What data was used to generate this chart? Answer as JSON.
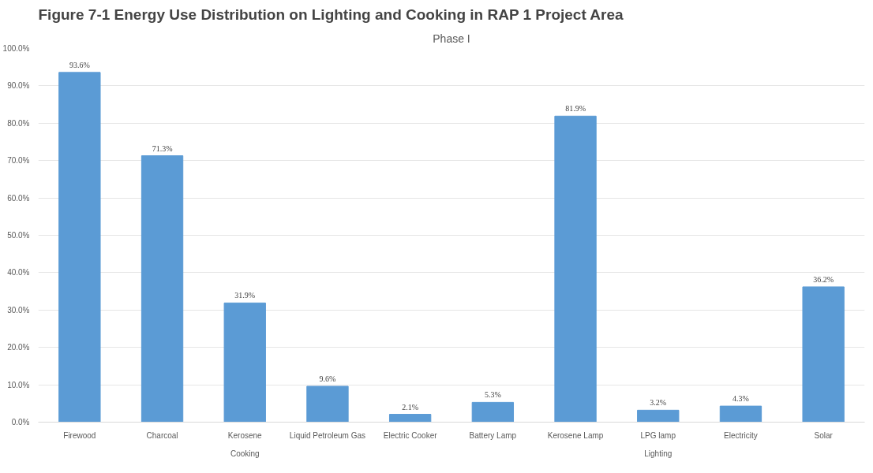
{
  "chart_data": {
    "type": "bar",
    "title": "Figure 7-1        Energy Use Distribution on Lighting and Cooking in RAP 1 Project Area",
    "subtitle": "Phase I",
    "categories": [
      "Firewood",
      "Charcoal",
      "Kerosene",
      "Liquid Petroleum Gas",
      "Electric Cooker",
      "Battery Lamp",
      "Kerosene Lamp",
      "LPG lamp",
      "Electricity",
      "Solar"
    ],
    "values": [
      93.6,
      71.3,
      31.9,
      9.6,
      2.1,
      5.3,
      81.9,
      3.2,
      4.3,
      36.2
    ],
    "color": "#5b9bd5",
    "value_labels": [
      "93.6%",
      "71.3%",
      "31.9%",
      "9.6%",
      "2.1%",
      "5.3%",
      "81.9%",
      "3.2%",
      "4.3%",
      "36.2%"
    ],
    "ylim": [
      0,
      100
    ],
    "yticks": [
      {
        "value": 0,
        "label": "0.0%"
      },
      {
        "value": 10,
        "label": "10.0%"
      },
      {
        "value": 20,
        "label": "20.0%"
      },
      {
        "value": 30,
        "label": "30.0%"
      },
      {
        "value": 40,
        "label": "40.0%"
      },
      {
        "value": 50,
        "label": "50.0%"
      },
      {
        "value": 60,
        "label": "60.0%"
      },
      {
        "value": 70,
        "label": "70.0%"
      },
      {
        "value": 80,
        "label": "80.0%"
      },
      {
        "value": 90,
        "label": "90.0%"
      },
      {
        "value": 100,
        "label": "100.0%"
      }
    ],
    "annotations": [
      "Cooking",
      "Lighting"
    ],
    "grid": "y"
  }
}
